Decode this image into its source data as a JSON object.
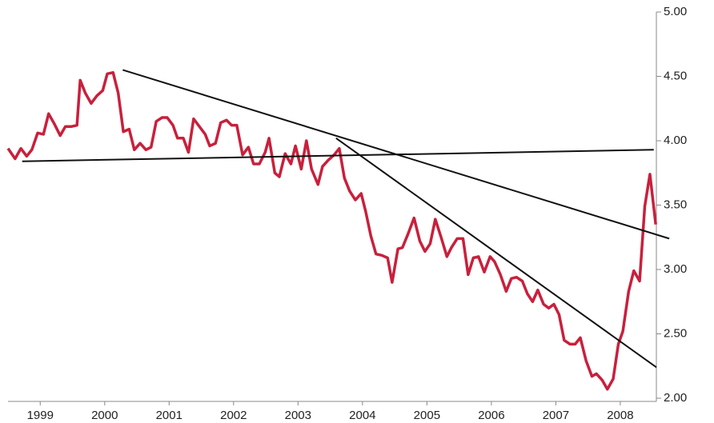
{
  "chart_data": {
    "type": "line",
    "x": [
      1999.0,
      1999.11,
      1999.2,
      1999.29,
      1999.37,
      1999.46,
      1999.55,
      1999.63,
      1999.72,
      1999.81,
      1999.89,
      1999.98,
      2000.07,
      2000.12,
      2000.2,
      2000.29,
      2000.38,
      2000.47,
      2000.54,
      2000.63,
      2000.71,
      2000.79,
      2000.88,
      2000.96,
      2001.05,
      2001.14,
      2001.22,
      2001.3,
      2001.39,
      2001.47,
      2001.56,
      2001.63,
      2001.72,
      2001.8,
      2001.88,
      2001.97,
      2002.06,
      2002.13,
      2002.22,
      2002.3,
      2002.39,
      2002.47,
      2002.55,
      2002.64,
      2002.73,
      2002.81,
      2002.9,
      2002.99,
      2003.05,
      2003.14,
      2003.21,
      2003.3,
      2003.39,
      2003.46,
      2003.55,
      2003.63,
      2003.71,
      2003.81,
      2003.88,
      2003.97,
      2004.06,
      2004.14,
      2004.22,
      2004.3,
      2004.39,
      2004.48,
      2004.55,
      2004.63,
      2004.71,
      2004.8,
      2004.89,
      2004.96,
      2005.05,
      2005.12,
      2005.21,
      2005.3,
      2005.39,
      2005.47,
      2005.55,
      2005.63,
      2005.72,
      2005.81,
      2005.88,
      2005.97,
      2006.06,
      2006.14,
      2006.22,
      2006.3,
      2006.39,
      2006.48,
      2006.55,
      2006.64,
      2006.73,
      2006.81,
      2006.89,
      2006.98,
      2007.06,
      2007.14,
      2007.22,
      2007.31,
      2007.39,
      2007.47,
      2007.55,
      2007.63,
      2007.72,
      2007.8,
      2007.88,
      2007.97,
      2008.06,
      2008.13,
      2008.22,
      2008.3,
      2008.39,
      2008.47,
      2008.54,
      2008.63,
      2008.71,
      2008.8,
      2008.88,
      2008.96,
      2009.05
    ],
    "series": [
      {
        "color": "#c8203c",
        "values": [
          3.94,
          3.86,
          3.94,
          3.88,
          3.93,
          4.06,
          4.05,
          4.21,
          4.13,
          4.04,
          4.11,
          4.11,
          4.12,
          4.47,
          4.37,
          4.29,
          4.35,
          4.39,
          4.52,
          4.53,
          4.37,
          4.07,
          4.09,
          3.93,
          3.98,
          3.93,
          3.95,
          4.15,
          4.18,
          4.18,
          4.12,
          4.02,
          4.02,
          3.91,
          4.17,
          4.11,
          4.05,
          3.96,
          3.98,
          4.14,
          4.16,
          4.12,
          4.12,
          3.89,
          3.95,
          3.82,
          3.82,
          3.91,
          4.02,
          3.75,
          3.72,
          3.9,
          3.82,
          3.96,
          3.78,
          4.0,
          3.78,
          3.66,
          3.8,
          3.85,
          3.89,
          3.94,
          3.71,
          3.61,
          3.54,
          3.59,
          3.45,
          3.26,
          3.12,
          3.11,
          3.09,
          2.9,
          3.16,
          3.17,
          3.28,
          3.4,
          3.22,
          3.14,
          3.2,
          3.39,
          3.25,
          3.1,
          3.17,
          3.24,
          3.24,
          2.96,
          3.09,
          3.1,
          2.98,
          3.1,
          3.06,
          2.96,
          2.83,
          2.93,
          2.94,
          2.91,
          2.81,
          2.75,
          2.84,
          2.73,
          2.7,
          2.73,
          2.65,
          2.45,
          2.42,
          2.42,
          2.47,
          2.29,
          2.17,
          2.19,
          2.14,
          2.07,
          2.15,
          2.42,
          2.52,
          2.83,
          2.99,
          2.91,
          3.49,
          3.74,
          3.35
        ]
      }
    ],
    "trend_lines": [
      {
        "x": [
          1999.22,
          2009.02
        ],
        "y": [
          3.84,
          3.93
        ]
      },
      {
        "x": [
          2000.78,
          2009.26
        ],
        "y": [
          4.55,
          3.24
        ]
      },
      {
        "x": [
          2004.09,
          2009.06
        ],
        "y": [
          4.02,
          2.24
        ]
      }
    ],
    "xlim": [
      1999,
      2009.06
    ],
    "xticks": [
      {
        "value": 1999.5,
        "label": "1999"
      },
      {
        "value": 2000.5,
        "label": "2000"
      },
      {
        "value": 2001.5,
        "label": "2001"
      },
      {
        "value": 2002.5,
        "label": "2002"
      },
      {
        "value": 2003.5,
        "label": "2003"
      },
      {
        "value": 2004.5,
        "label": "2004"
      },
      {
        "value": 2005.5,
        "label": "2005"
      },
      {
        "value": 2006.5,
        "label": "2006"
      },
      {
        "value": 2007.5,
        "label": "2007"
      },
      {
        "value": 2008.5,
        "label": "2008"
      }
    ],
    "ylim": [
      2,
      5
    ],
    "yticks": [
      {
        "value": 2,
        "label": "2.00"
      },
      {
        "value": 2.5,
        "label": "2.50"
      },
      {
        "value": 3,
        "label": "3.00"
      },
      {
        "value": 3.5,
        "label": "3.50"
      },
      {
        "value": 4,
        "label": "4.00"
      },
      {
        "value": 4.5,
        "label": "4.50"
      },
      {
        "value": 5,
        "label": "5.00"
      }
    ]
  }
}
